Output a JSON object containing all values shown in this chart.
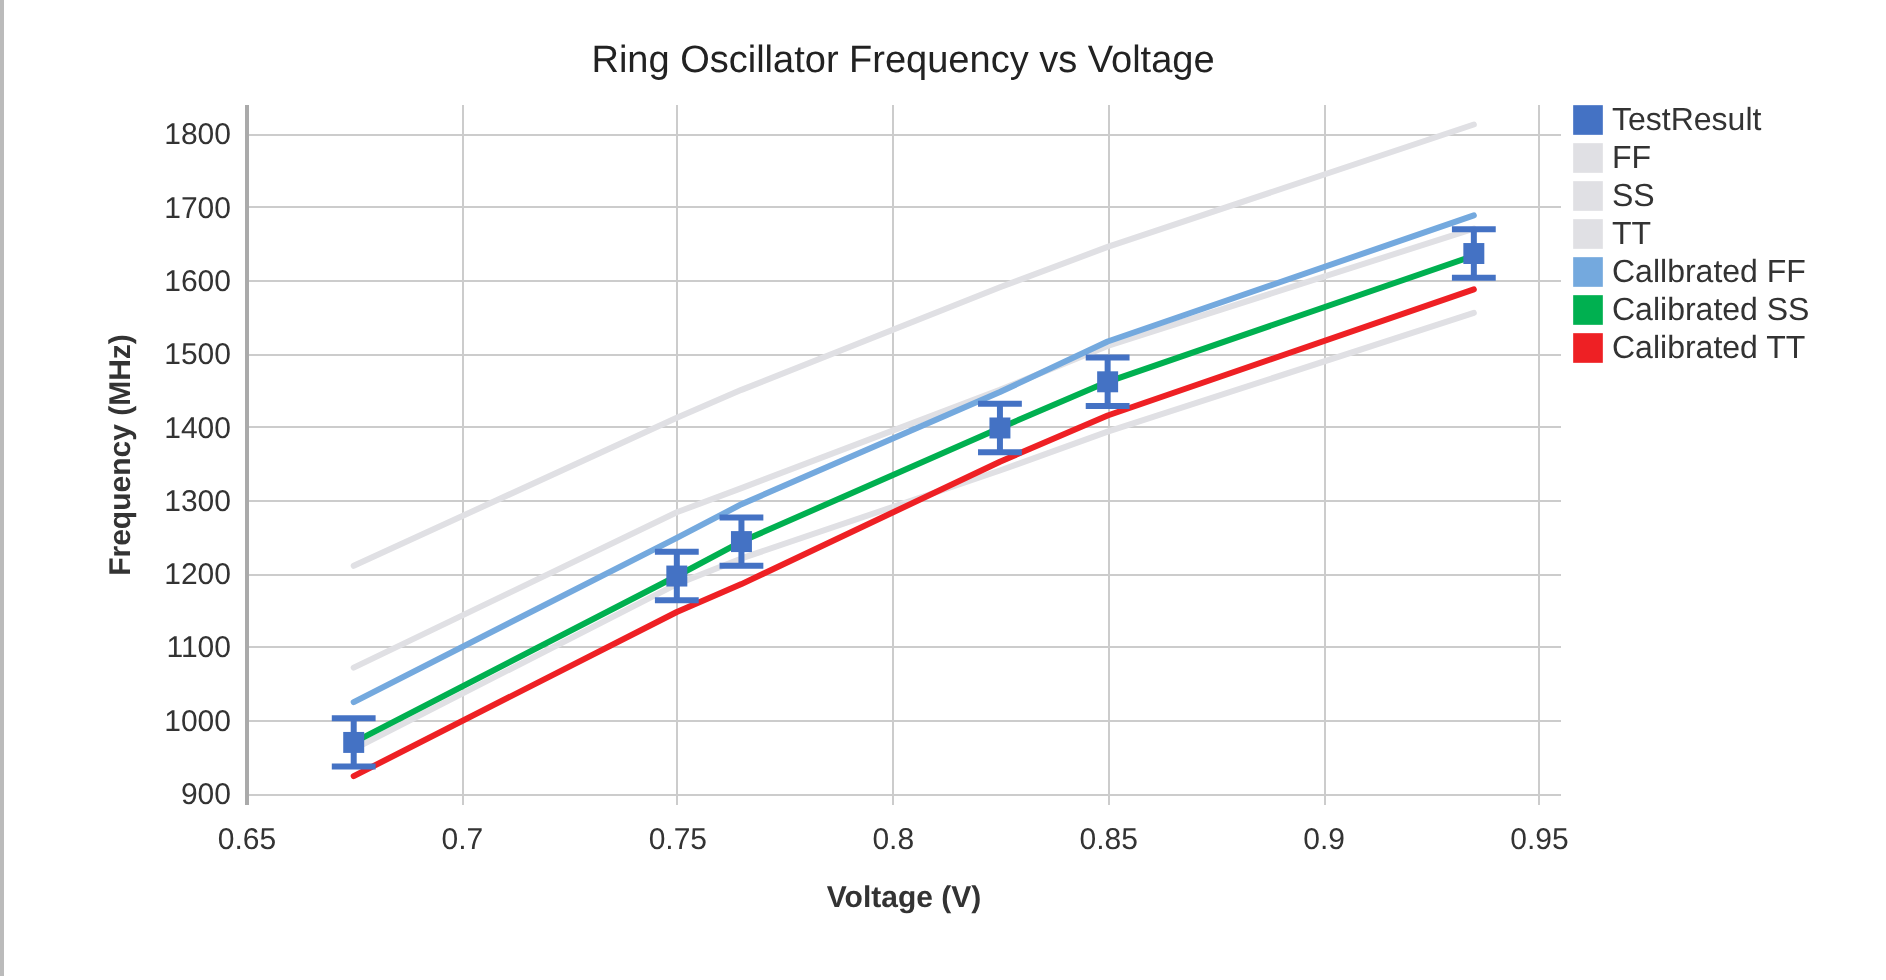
{
  "chart_data": {
    "type": "line",
    "title": "Ring Oscillator Frequency vs  Voltage",
    "xlabel": "Voltage (V)",
    "ylabel": "Frequency (MHz)",
    "x": [
      0.675,
      0.75,
      0.765,
      0.825,
      0.85,
      0.935
    ],
    "xlim": [
      0.65,
      0.955
    ],
    "xticks": [
      0.65,
      0.7,
      0.75,
      0.8,
      0.85,
      0.9,
      0.95
    ],
    "ylim": [
      885,
      1840
    ],
    "yticks": [
      900,
      1000,
      1100,
      1200,
      1300,
      1400,
      1500,
      1600,
      1700,
      1800
    ],
    "grid": true,
    "legend": "right",
    "series": [
      {
        "name": "TestResult",
        "type": "scatter",
        "marker": "square",
        "color": "#4472c4",
        "values": [
          969,
          1196,
          1243,
          1398,
          1461,
          1636
        ],
        "errors": [
          33,
          33,
          33,
          33,
          33,
          33
        ]
      },
      {
        "name": "FF",
        "color": "#e0e0e4",
        "values": [
          1210,
          1412,
          1450,
          1590,
          1645,
          1812
        ]
      },
      {
        "name": "SS",
        "color": "#e0e0e4",
        "values": [
          960,
          1185,
          1220,
          1340,
          1393,
          1555
        ]
      },
      {
        "name": "TT",
        "color": "#e0e0e4",
        "values": [
          1071,
          1283,
          1316,
          1450,
          1510,
          1670
        ]
      },
      {
        "name": "Callbrated FF",
        "color": "#74a9de",
        "values": [
          1024,
          1248,
          1294,
          1447,
          1516,
          1688
        ]
      },
      {
        "name": "Calibrated SS",
        "color": "#00b050",
        "values": [
          969,
          1196,
          1243,
          1398,
          1461,
          1633
        ]
      },
      {
        "name": "Calibrated TT",
        "color": "#ee2024",
        "values": [
          923,
          1147,
          1185,
          1352,
          1415,
          1587
        ]
      }
    ]
  }
}
